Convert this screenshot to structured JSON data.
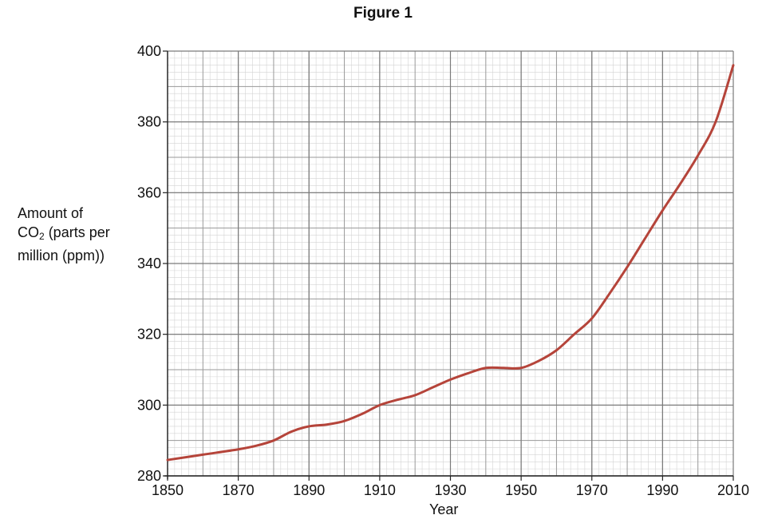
{
  "chart_data": {
    "type": "line",
    "title": "Figure 1",
    "ylabel_lines": [
      "Amount of",
      "CO",
      "2",
      " (parts per",
      "million (ppm))"
    ],
    "xlabel": "Year",
    "xlim": [
      1850,
      2010
    ],
    "ylim": [
      280,
      400
    ],
    "x_ticks": [
      1850,
      1870,
      1890,
      1910,
      1930,
      1950,
      1970,
      1990,
      2010
    ],
    "y_ticks": [
      280,
      300,
      320,
      340,
      360,
      380,
      400
    ],
    "grid": true,
    "line_color": "#b5443a",
    "series": [
      {
        "x": [
          1850,
          1860,
          1870,
          1875,
          1880,
          1885,
          1890,
          1895,
          1900,
          1905,
          1910,
          1915,
          1920,
          1925,
          1930,
          1935,
          1940,
          1945,
          1950,
          1955,
          1960,
          1965,
          1970,
          1975,
          1980,
          1985,
          1990,
          1995,
          2000,
          2005,
          2010
        ],
        "y": [
          284.5,
          286,
          287.5,
          288.5,
          290,
          292.5,
          294,
          294.5,
          295.5,
          297.5,
          300,
          301.5,
          302.8,
          305,
          307.2,
          309,
          310.5,
          310.5,
          310.5,
          312.5,
          315.5,
          320,
          324.5,
          331.5,
          339,
          347,
          355,
          362.5,
          370.5,
          380,
          396
        ]
      }
    ]
  }
}
